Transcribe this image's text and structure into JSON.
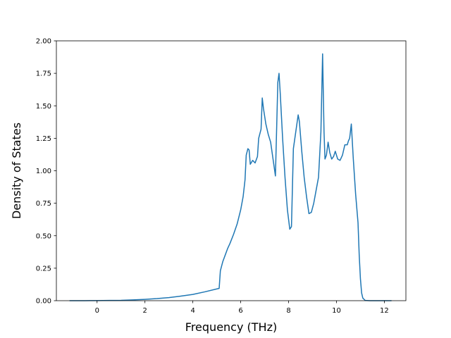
{
  "chart_data": {
    "type": "line",
    "title": "",
    "xlabel": "Frequency (THz)",
    "ylabel": "Density of States",
    "xlim": [
      -1.7,
      12.9
    ],
    "ylim": [
      0,
      2.0
    ],
    "xticks": [
      0,
      2,
      4,
      6,
      8,
      10,
      12
    ],
    "xtick_labels": [
      "0",
      "2",
      "4",
      "6",
      "8",
      "10",
      "12"
    ],
    "yticks": [
      0,
      0.25,
      0.5,
      0.75,
      1.0,
      1.25,
      1.5,
      1.75,
      2.0
    ],
    "ytick_labels": [
      "0.00",
      "0.25",
      "0.50",
      "0.75",
      "1.00",
      "1.25",
      "1.50",
      "1.75",
      "2.00"
    ],
    "grid": false,
    "line_color": "#1f77b4",
    "series": [
      {
        "x": [
          -1.15,
          -0.5,
          0,
          0.5,
          1,
          1.5,
          2,
          2.5,
          3,
          3.5,
          4,
          4.5,
          5.1,
          5.15,
          5.25,
          5.35,
          5.45,
          5.55,
          5.7,
          5.85,
          6.0,
          6.1,
          6.18,
          6.23,
          6.3,
          6.35,
          6.4,
          6.5,
          6.6,
          6.7,
          6.75,
          6.85,
          6.9,
          6.95,
          7.05,
          7.15,
          7.25,
          7.35,
          7.45,
          7.55,
          7.6,
          7.65,
          7.75,
          7.85,
          7.95,
          8.05,
          8.12,
          8.2,
          8.3,
          8.4,
          8.45,
          8.55,
          8.65,
          8.75,
          8.85,
          8.95,
          9.05,
          9.15,
          9.25,
          9.35,
          9.42,
          9.48,
          9.52,
          9.58,
          9.65,
          9.72,
          9.8,
          9.88,
          9.95,
          10.05,
          10.15,
          10.25,
          10.35,
          10.45,
          10.5,
          10.55,
          10.62,
          10.7,
          10.8,
          10.9,
          10.95,
          11.0,
          11.05,
          11.1,
          11.2,
          11.4,
          11.8,
          12.3
        ],
        "y": [
          0,
          0,
          0.001,
          0.002,
          0.003,
          0.006,
          0.01,
          0.016,
          0.024,
          0.035,
          0.048,
          0.068,
          0.095,
          0.23,
          0.3,
          0.35,
          0.4,
          0.44,
          0.51,
          0.59,
          0.7,
          0.8,
          0.93,
          1.12,
          1.17,
          1.16,
          1.05,
          1.08,
          1.06,
          1.11,
          1.25,
          1.32,
          1.56,
          1.48,
          1.36,
          1.28,
          1.22,
          1.09,
          0.96,
          1.68,
          1.75,
          1.6,
          1.25,
          0.95,
          0.7,
          0.55,
          0.57,
          1.17,
          1.3,
          1.43,
          1.38,
          1.15,
          0.95,
          0.8,
          0.67,
          0.68,
          0.75,
          0.85,
          0.95,
          1.3,
          1.9,
          1.3,
          1.09,
          1.12,
          1.22,
          1.14,
          1.09,
          1.11,
          1.15,
          1.09,
          1.08,
          1.12,
          1.2,
          1.2,
          1.23,
          1.25,
          1.36,
          1.1,
          0.82,
          0.6,
          0.35,
          0.17,
          0.06,
          0.02,
          0.002,
          0,
          0,
          0
        ]
      }
    ]
  }
}
